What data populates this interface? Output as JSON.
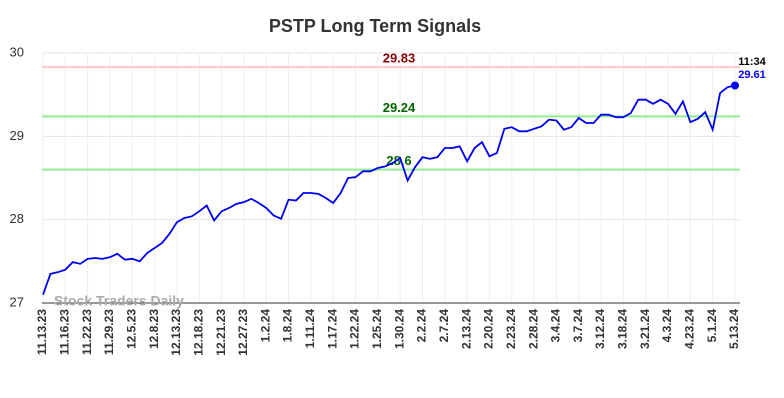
{
  "chart_data": {
    "type": "line",
    "title": "PSTP Long Term Signals",
    "categories": [
      "11.13.23",
      null,
      null,
      "11.16.23",
      null,
      null,
      "11.22.23",
      null,
      null,
      "11.29.23",
      null,
      null,
      "12.5.23",
      null,
      null,
      "12.8.23",
      null,
      null,
      "12.13.23",
      null,
      null,
      "12.18.23",
      null,
      null,
      "12.21.23",
      null,
      null,
      "12.27.23",
      null,
      null,
      "1.2.24",
      null,
      null,
      "1.8.24",
      null,
      null,
      "1.11.24",
      null,
      null,
      "1.17.24",
      null,
      null,
      "1.22.24",
      null,
      null,
      "1.25.24",
      null,
      null,
      "1.30.24",
      null,
      null,
      "2.2.24",
      null,
      null,
      "2.7.24",
      null,
      null,
      "2.13.24",
      null,
      null,
      "2.20.24",
      null,
      null,
      "2.23.24",
      null,
      null,
      "2.28.24",
      null,
      null,
      "3.4.24",
      null,
      null,
      "3.7.24",
      null,
      null,
      "3.12.24",
      null,
      null,
      "3.18.24",
      null,
      null,
      "3.21.24",
      null,
      null,
      "4.3.24",
      null,
      null,
      "4.23.24",
      null,
      null,
      "5.1.24",
      null,
      null,
      "5.13.24"
    ],
    "values": [
      27.1,
      27.35,
      27.37,
      27.4,
      27.49,
      27.47,
      27.53,
      27.54,
      27.53,
      27.55,
      27.59,
      27.52,
      27.53,
      27.5,
      27.6,
      27.66,
      27.72,
      27.83,
      27.97,
      28.02,
      28.04,
      28.1,
      28.17,
      27.99,
      28.1,
      28.14,
      28.19,
      28.21,
      28.25,
      28.2,
      28.14,
      28.05,
      28.01,
      28.24,
      28.23,
      28.32,
      28.32,
      28.31,
      28.26,
      28.2,
      28.32,
      28.5,
      28.51,
      28.58,
      28.58,
      28.62,
      28.64,
      28.68,
      28.74,
      28.47,
      28.63,
      28.75,
      28.73,
      28.75,
      28.86,
      28.86,
      28.88,
      28.7,
      28.86,
      28.93,
      28.76,
      28.8,
      29.09,
      29.11,
      29.06,
      29.06,
      29.09,
      29.12,
      29.2,
      29.19,
      29.08,
      29.11,
      29.22,
      29.16,
      29.16,
      29.26,
      29.26,
      29.23,
      29.23,
      29.28,
      29.44,
      29.44,
      29.39,
      29.44,
      29.39,
      29.27,
      29.42,
      29.17,
      29.21,
      29.29,
      29.08,
      29.52,
      29.59,
      29.61
    ],
    "color": "#0000ee",
    "ylim": [
      27,
      30
    ],
    "yticks": [
      27,
      28,
      29,
      30
    ],
    "grid": true,
    "levels": [
      {
        "value": 29.83,
        "color": "#ffc8c8",
        "label_color": "#8b0000"
      },
      {
        "value": 29.24,
        "color": "#90ee90",
        "label_color": "#006400"
      },
      {
        "value": 28.6,
        "color": "#90ee90",
        "label_color": "#006400"
      }
    ],
    "last_time": "11:34",
    "watermark": "Stock Traders Daily"
  }
}
